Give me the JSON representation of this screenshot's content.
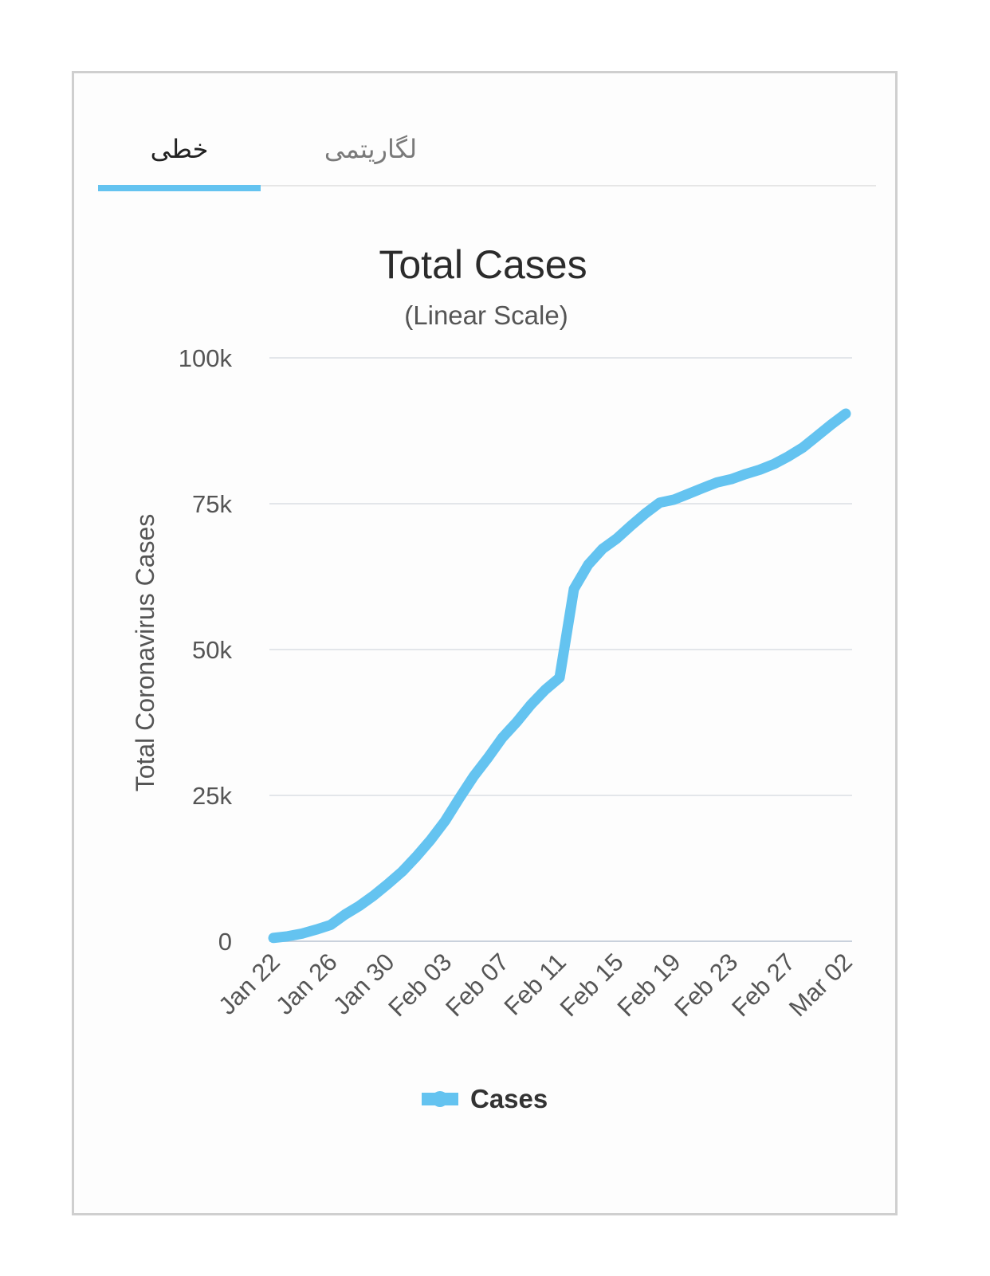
{
  "tabs": [
    {
      "label": "خطی",
      "active": true
    },
    {
      "label": "لگاریتمی",
      "active": false
    }
  ],
  "colors": {
    "series": "#64c3f0",
    "grid": "#e3e6ea",
    "tab_indicator": "#64c3f0"
  },
  "chart_data": {
    "type": "line",
    "title": "Total Cases",
    "subtitle": "(Linear Scale)",
    "ylabel": "Total Coronavirus Cases",
    "xlabel": "",
    "ylim": [
      0,
      100000
    ],
    "y_ticks": [
      0,
      25000,
      50000,
      75000,
      100000
    ],
    "y_tick_labels": [
      "0",
      "25k",
      "50k",
      "75k",
      "100k"
    ],
    "x_tick_labels": [
      "Jan 22",
      "Jan 26",
      "Jan 30",
      "Feb 03",
      "Feb 07",
      "Feb 11",
      "Feb 15",
      "Feb 19",
      "Feb 23",
      "Feb 27",
      "Mar 02"
    ],
    "grid": true,
    "legend_position": "bottom-center",
    "categories": [
      "Jan 22",
      "Jan 23",
      "Jan 24",
      "Jan 25",
      "Jan 26",
      "Jan 27",
      "Jan 28",
      "Jan 29",
      "Jan 30",
      "Jan 31",
      "Feb 01",
      "Feb 02",
      "Feb 03",
      "Feb 04",
      "Feb 05",
      "Feb 06",
      "Feb 07",
      "Feb 08",
      "Feb 09",
      "Feb 10",
      "Feb 11",
      "Feb 12",
      "Feb 13",
      "Feb 14",
      "Feb 15",
      "Feb 16",
      "Feb 17",
      "Feb 18",
      "Feb 19",
      "Feb 20",
      "Feb 21",
      "Feb 22",
      "Feb 23",
      "Feb 24",
      "Feb 25",
      "Feb 26",
      "Feb 27",
      "Feb 28",
      "Feb 29",
      "Mar 01",
      "Mar 02"
    ],
    "series": [
      {
        "name": "Cases",
        "values": [
          580,
          845,
          1317,
          2015,
          2800,
          4581,
          6058,
          7813,
          9823,
          11950,
          14553,
          17391,
          20630,
          24554,
          28276,
          31481,
          34886,
          37558,
          40554,
          43103,
          45171,
          60381,
          64543,
          67273,
          69032,
          71258,
          73332,
          75184,
          75700,
          76677,
          77673,
          78651,
          79205,
          80087,
          80828,
          81820,
          83112,
          84615,
          86604,
          88585,
          90443
        ]
      }
    ]
  }
}
